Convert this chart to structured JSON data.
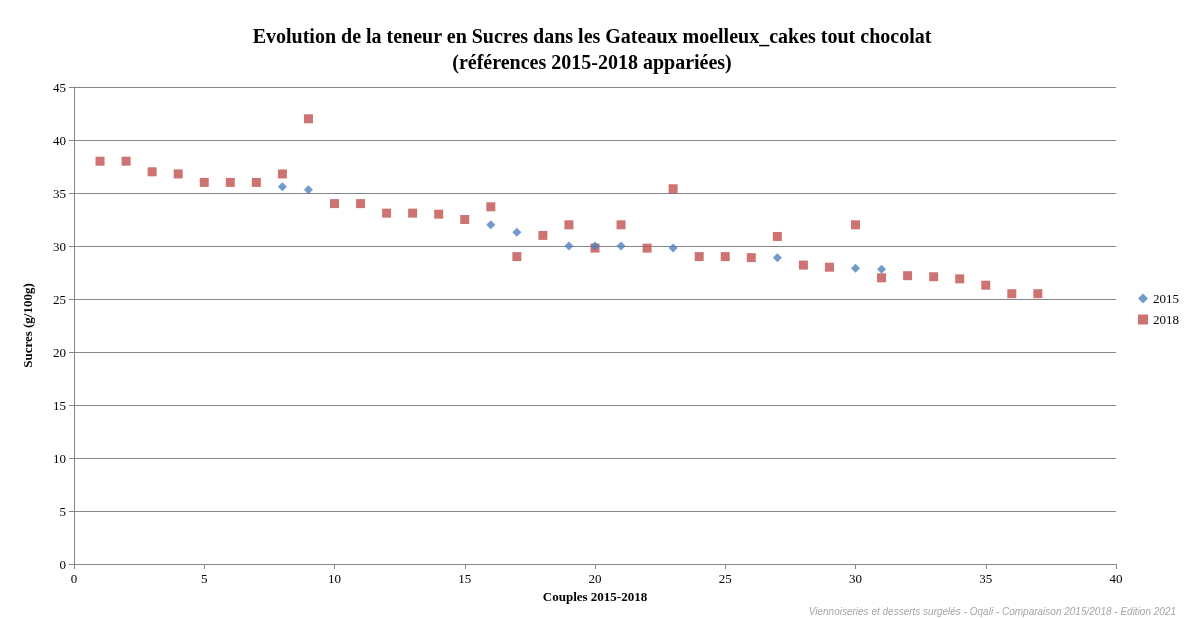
{
  "chart_data": {
    "type": "scatter",
    "title": "Evolution de la teneur en Sucres dans les Gateaux moelleux_cakes tout chocolat\n(références 2015-2018 appariées)",
    "xlabel": "Couples 2015-2018",
    "ylabel": "Sucres (g/100g)",
    "x": [
      1,
      2,
      3,
      4,
      5,
      6,
      7,
      8,
      9,
      10,
      11,
      12,
      13,
      14,
      15,
      16,
      17,
      18,
      19,
      20,
      21,
      22,
      23,
      24,
      25,
      26,
      27,
      28,
      29,
      30,
      31,
      32,
      33,
      34,
      35,
      36,
      37
    ],
    "series": [
      {
        "name": "2015",
        "color": "#4f81bd",
        "marker": "diamond",
        "values": [
          null,
          null,
          null,
          null,
          null,
          null,
          null,
          35.6,
          35.3,
          null,
          null,
          null,
          null,
          null,
          null,
          32,
          31.3,
          null,
          30,
          30,
          30,
          null,
          29.8,
          null,
          null,
          null,
          28.9,
          null,
          null,
          27.9,
          27.8,
          null,
          null,
          null,
          null,
          null,
          null
        ]
      },
      {
        "name": "2018",
        "color": "#c0504d",
        "marker": "square",
        "values": [
          38,
          38,
          37,
          36.8,
          36,
          36,
          36,
          36.8,
          42,
          34,
          34,
          33.1,
          33.1,
          33,
          32.5,
          33.7,
          29,
          31,
          32,
          29.8,
          32,
          29.8,
          35.4,
          29,
          29,
          28.9,
          30.9,
          28.2,
          28,
          32,
          27,
          27.2,
          27.1,
          26.9,
          26.3,
          25.5,
          25.5
        ]
      }
    ],
    "xlim": [
      0,
      40
    ],
    "xticks": [
      0,
      5,
      10,
      15,
      20,
      25,
      30,
      35,
      40
    ],
    "ylim": [
      0,
      45
    ],
    "yticks": [
      0,
      5,
      10,
      15,
      20,
      25,
      30,
      35,
      40,
      45
    ],
    "grid": "y",
    "legend": "right",
    "annotations": [
      "Viennoiseries et desserts surgelés - Oqali - Comparaison 2015/2018 - Edition 2021"
    ]
  }
}
